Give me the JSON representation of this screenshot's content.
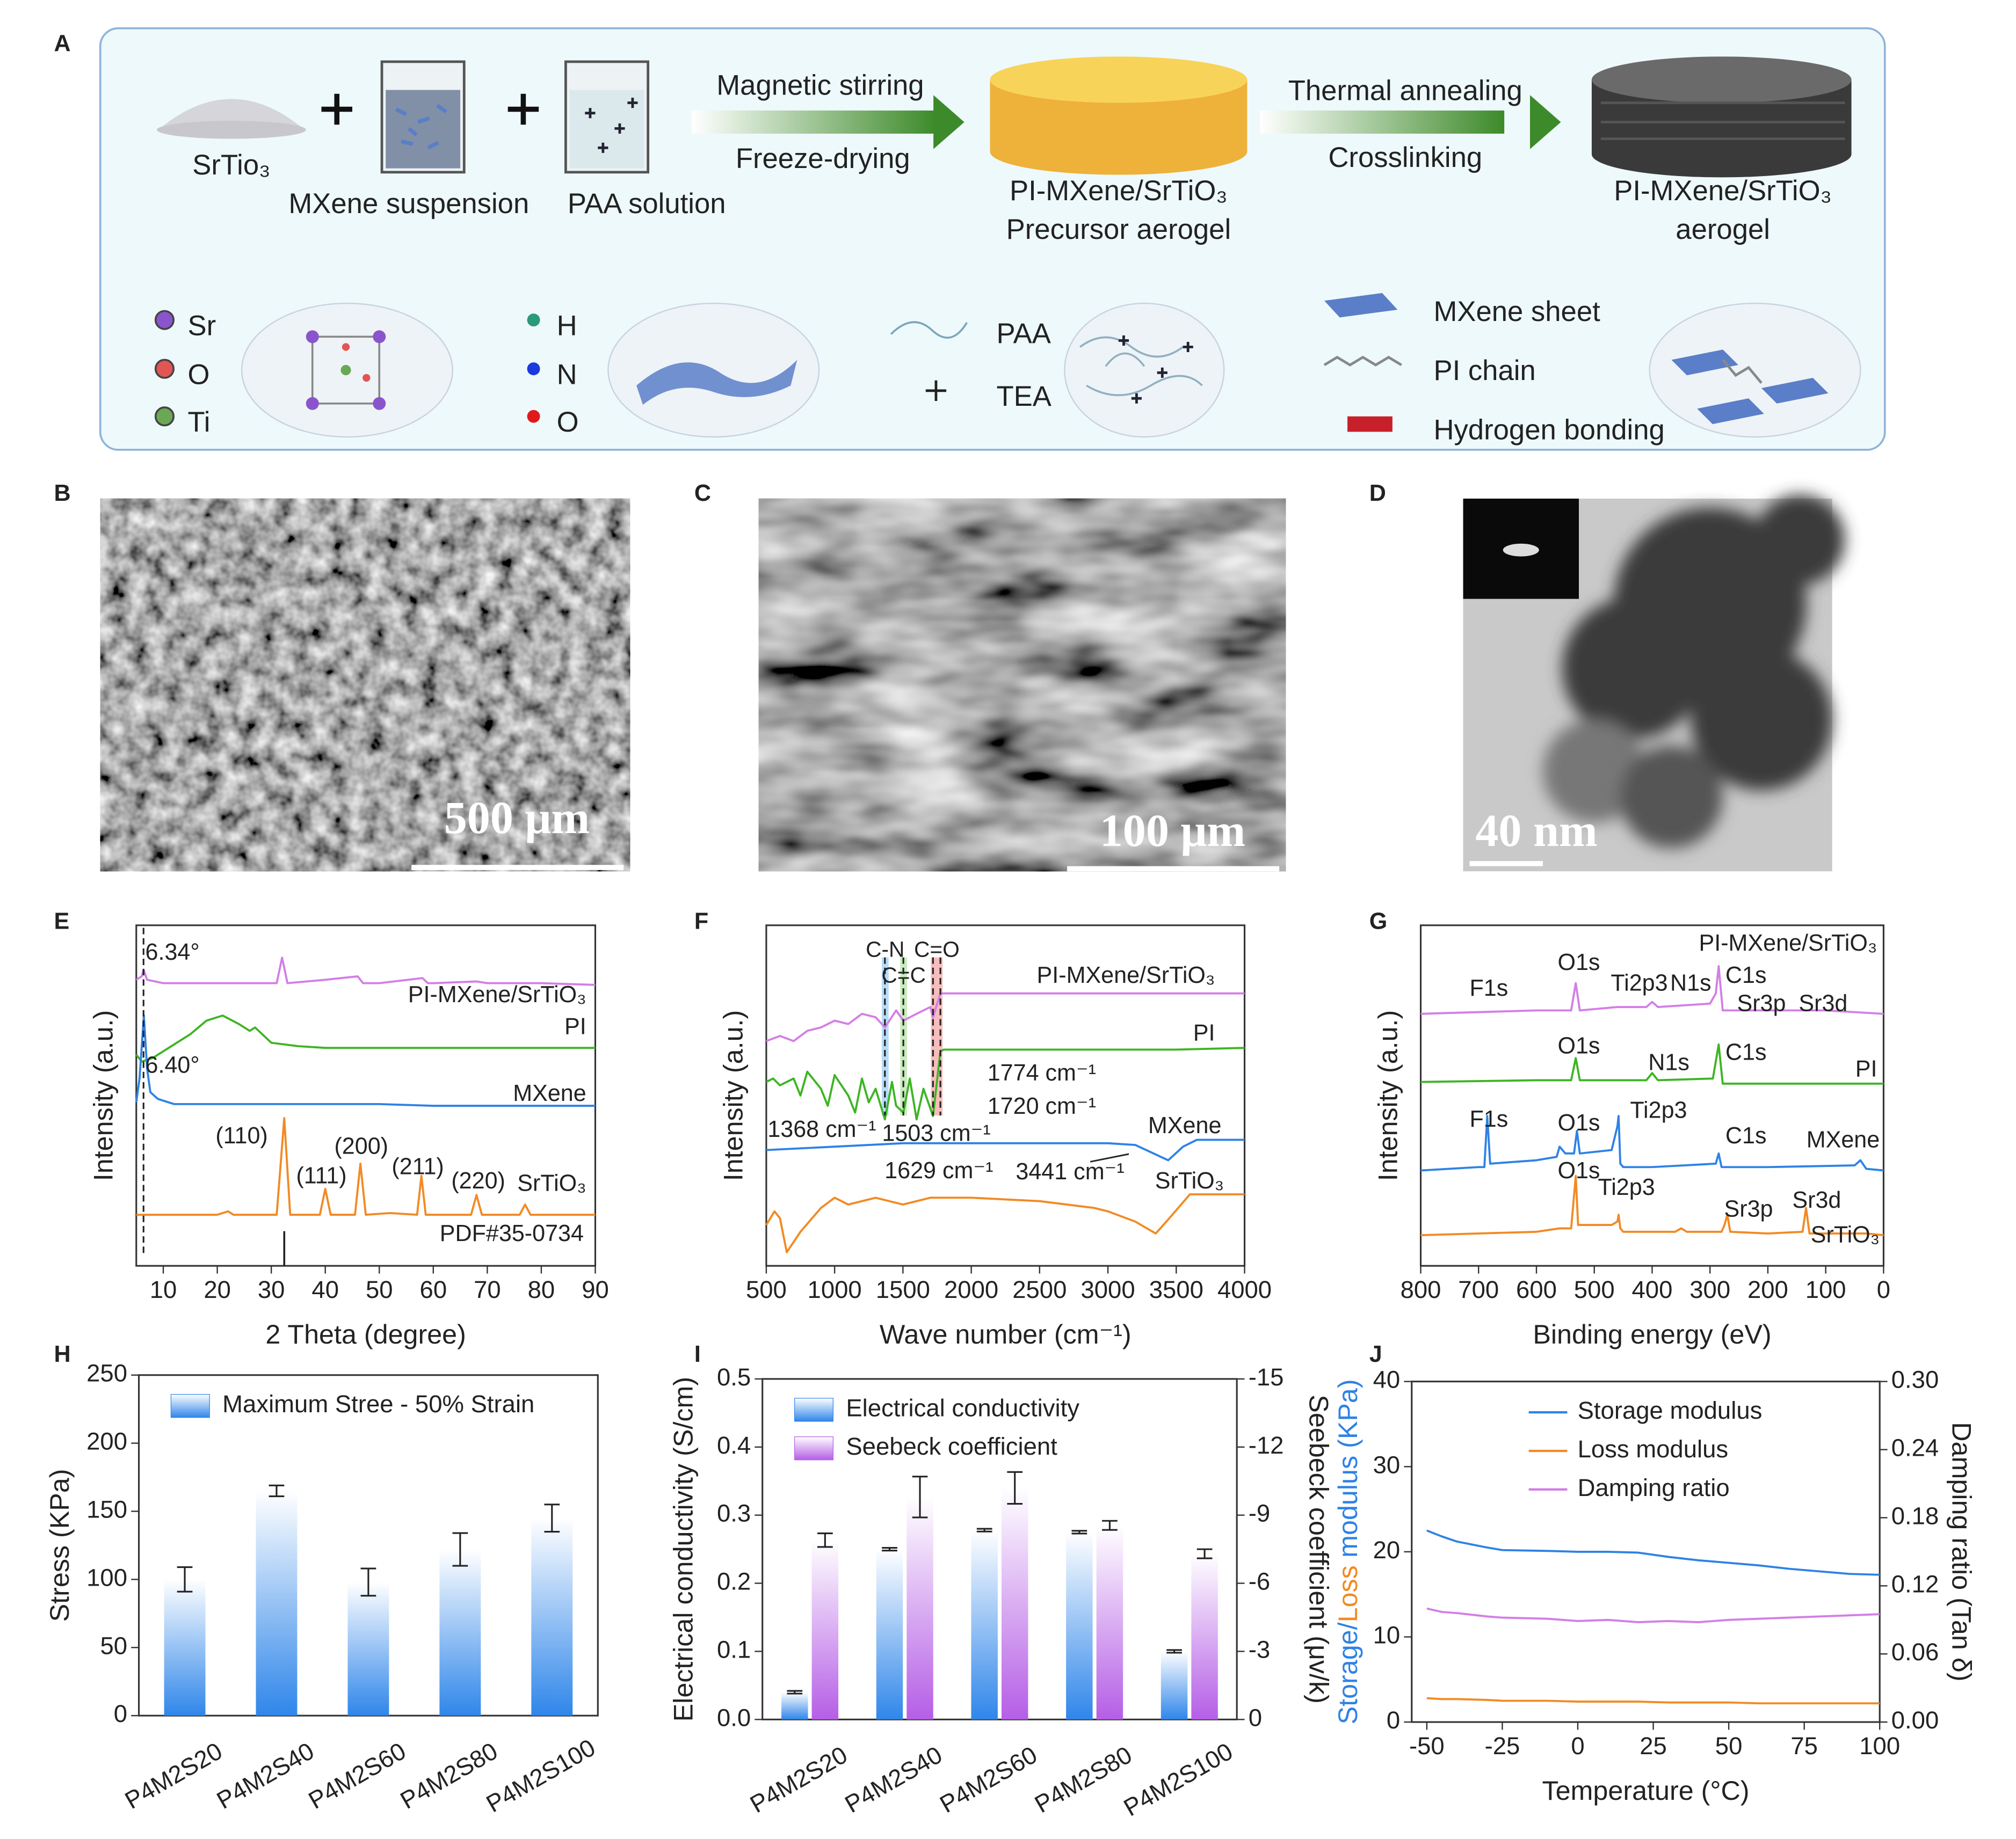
{
  "figure_a": {
    "label": "A",
    "srtio3": "SrTio₃",
    "mxene_suspension": "MXene suspension",
    "paa_solution": "PAA solution",
    "step1_top": "Magnetic stirring",
    "step1_bottom": "Freeze-drying",
    "precursor_line1": "PI-MXene/SrTiO₃",
    "precursor_line2": "Precursor aerogel",
    "step2_top": "Thermal annealing",
    "step2_bottom": "Crosslinking",
    "aerogel_line1": "PI-MXene/SrTiO₃",
    "aerogel_line2": "aerogel",
    "legend": [
      {
        "label": "Sr",
        "color": "#8a55cc"
      },
      {
        "label": "O",
        "color": "#e25555"
      },
      {
        "label": "Ti",
        "color": "#6aa854"
      },
      {
        "label": "H",
        "color": "#2a9a7a"
      },
      {
        "label": "N",
        "color": "#1a3adf"
      },
      {
        "label": "O",
        "color": "#e01a1a"
      },
      {
        "label": "PAA",
        "color": "#7aa6b8"
      },
      {
        "label": "TEA",
        "color": "#222222"
      },
      {
        "label": "MXene sheet",
        "color": "#5a7ec8"
      },
      {
        "label": "PI chain",
        "color": "#888888"
      },
      {
        "label": "Hydrogen bonding",
        "color": "#c8202a"
      }
    ]
  },
  "images": [
    {
      "label": "B",
      "scale_bar": "500 μm"
    },
    {
      "label": "C",
      "scale_bar": "100 μm"
    },
    {
      "label": "D",
      "scale_bar": "40 nm"
    }
  ],
  "chart_data": [
    {
      "type": "line",
      "label": "E",
      "xlabel": "2 Theta (degree)",
      "ylabel": "Intensity (a.u.)",
      "xlim": [
        5,
        90
      ],
      "xticks": [
        10,
        20,
        30,
        40,
        50,
        60,
        70,
        80,
        90
      ],
      "ylim": [
        0,
        100
      ],
      "series": [
        {
          "name": "PI-MXene/SrTiO₃",
          "color": "#d37ee6",
          "x": [
            5,
            6,
            6.34,
            7,
            10,
            15,
            20,
            25,
            31,
            32,
            33,
            40,
            46,
            47,
            50,
            58,
            59,
            60,
            68,
            70,
            80,
            90
          ],
          "values": [
            84,
            85,
            87,
            84,
            83,
            83,
            83,
            83,
            83,
            90.5,
            83,
            84,
            85,
            83,
            83,
            84.5,
            83,
            83,
            83.5,
            83,
            83,
            82.5
          ]
        },
        {
          "name": "PI",
          "color": "#3db523",
          "x": [
            5,
            6,
            8,
            10,
            15,
            18,
            21,
            24,
            26,
            27,
            30,
            35,
            40,
            50,
            60,
            70,
            80,
            90
          ],
          "values": [
            62,
            60,
            61,
            63,
            68,
            72,
            73.5,
            71,
            69,
            70,
            65.5,
            64.5,
            64,
            64,
            64,
            64,
            64,
            64
          ]
        },
        {
          "name": "MXene",
          "color": "#2e82e6",
          "x": [
            5,
            5.6,
            6.4,
            7,
            7.6,
            9,
            12,
            20,
            30,
            40,
            50,
            60,
            70,
            80,
            90
          ],
          "values": [
            48,
            55,
            73.5,
            58,
            51,
            49,
            47.5,
            47.5,
            47.5,
            47.5,
            47.5,
            47,
            47,
            47,
            47
          ]
        },
        {
          "name": "SrTiO₃",
          "color": "#f28a24",
          "x": [
            5,
            20,
            22,
            23,
            31,
            32.4,
            33.5,
            39,
            40,
            41,
            45.5,
            46.5,
            47.5,
            52,
            57,
            57.8,
            58.6,
            67,
            68,
            69,
            76,
            77,
            78,
            90
          ],
          "values": [
            15,
            15,
            16,
            15,
            15,
            43.4,
            15,
            15,
            22.6,
            15,
            15,
            30,
            15,
            15.5,
            15,
            26.4,
            15,
            15,
            20.8,
            15,
            15,
            18,
            15,
            15
          ]
        }
      ],
      "annotations": [
        {
          "label": "6.34°",
          "value": 6.34,
          "line": "dashed"
        },
        {
          "label": "6.40°"
        },
        {
          "label": "(110)"
        },
        {
          "label": "(111)"
        },
        {
          "label": "(200)"
        },
        {
          "label": "(211)"
        },
        {
          "label": "(220)"
        }
      ],
      "reference": {
        "label": "PDF#35-0734",
        "x": 32.4
      }
    },
    {
      "type": "line",
      "label": "F",
      "xlabel": "Wave number  (cm⁻¹)",
      "ylabel": "Intensity (a.u.)",
      "xlim": [
        500,
        4000
      ],
      "xticks": [
        500,
        1000,
        1500,
        2000,
        2500,
        3000,
        3500,
        4000
      ],
      "ylim": [
        0,
        100
      ],
      "series": [
        {
          "name": "PI-MXene/SrTiO₃",
          "color": "#d37ee6",
          "x": [
            500,
            600,
            700,
            800,
            900,
            1000,
            1100,
            1200,
            1300,
            1368,
            1450,
            1503,
            1600,
            1700,
            1720,
            1774,
            1800,
            2500,
            3000,
            3500,
            4000
          ],
          "values": [
            66,
            67.5,
            66,
            69,
            70,
            72,
            71,
            74,
            73,
            70,
            75,
            72,
            74,
            76,
            73,
            80,
            80,
            80,
            80,
            80,
            80
          ]
        },
        {
          "name": "PI",
          "color": "#3db523",
          "x": [
            500,
            550,
            600,
            700,
            750,
            800,
            900,
            950,
            1000,
            1100,
            1150,
            1200,
            1250,
            1300,
            1368,
            1420,
            1450,
            1503,
            1550,
            1600,
            1650,
            1720,
            1774,
            1800,
            2500,
            3000,
            3500,
            4000
          ],
          "values": [
            54,
            55,
            53,
            55,
            50,
            57,
            52,
            47,
            56,
            50,
            45,
            55,
            48,
            52,
            43,
            54,
            47,
            45,
            55,
            43,
            52,
            44,
            63,
            63.5,
            63.5,
            63.5,
            63.5,
            64
          ]
        },
        {
          "name": "MXene",
          "color": "#2e82e6",
          "x": [
            500,
            1000,
            1500,
            2000,
            2500,
            3000,
            3200,
            3441,
            3550,
            3650,
            4000
          ],
          "values": [
            34,
            35,
            36,
            36,
            36,
            36,
            35.5,
            31,
            35,
            37,
            37
          ]
        },
        {
          "name": "SrTiO₃",
          "color": "#f28a24",
          "x": [
            500,
            560,
            600,
            650,
            750,
            900,
            1000,
            1100,
            1300,
            1500,
            1700,
            2000,
            2500,
            2900,
            3000,
            3200,
            3350,
            3450,
            3600,
            4000
          ],
          "values": [
            12,
            16,
            14,
            4,
            10,
            17,
            20,
            18,
            20,
            18,
            20,
            20,
            19,
            17,
            16,
            13,
            9.5,
            14,
            21,
            21
          ]
        }
      ],
      "bands": [
        {
          "label": "C-N",
          "from": 1345,
          "to": 1395,
          "color": "#9fd0f5"
        },
        {
          "label": "C=C",
          "from": 1480,
          "to": 1530,
          "color": "#b8e6a8"
        },
        {
          "label": "C=O",
          "from": 1705,
          "to": 1790,
          "color": "#f4a6a6"
        }
      ],
      "annotations": [
        {
          "label": "1774 cm⁻¹",
          "value": 1774,
          "line": "dashed"
        },
        {
          "label": "1720 cm⁻¹",
          "value": 1720,
          "line": "dashed"
        },
        {
          "label": "1368 cm⁻¹",
          "value": 1368,
          "line": "dashed"
        },
        {
          "label": "1503 cm⁻¹",
          "value": 1503,
          "line": "dashed"
        },
        {
          "label": "1629 cm⁻¹"
        },
        {
          "label": "3441 cm⁻¹"
        }
      ]
    },
    {
      "type": "line",
      "label": "G",
      "xlabel": "Binding energy (eV)",
      "ylabel": "Intensity (a.u.)",
      "xlim": [
        800,
        0
      ],
      "xticks": [
        800,
        700,
        600,
        500,
        400,
        300,
        200,
        100,
        0
      ],
      "ylim": [
        0,
        100
      ],
      "series": [
        {
          "name": "PI-MXene/SrTiO₃",
          "color": "#d37ee6",
          "x": [
            800,
            700,
            600,
            540,
            532,
            525,
            460,
            410,
            400,
            390,
            300,
            290,
            285,
            278,
            270,
            200,
            100,
            0
          ],
          "values": [
            74,
            74.5,
            75,
            75,
            83,
            75,
            76,
            76,
            77.5,
            76,
            77,
            80,
            88,
            75,
            75,
            75,
            75,
            74
          ]
        },
        {
          "name": "PI",
          "color": "#3db523",
          "x": [
            800,
            600,
            540,
            532,
            525,
            410,
            400,
            390,
            295,
            285,
            278,
            200,
            0
          ],
          "values": [
            54,
            54.5,
            54.5,
            61,
            54.5,
            54.5,
            56.6,
            54.5,
            55,
            65,
            53.5,
            53.5,
            53.5
          ]
        },
        {
          "name": "MXene",
          "color": "#2e82e6",
          "x": [
            800,
            700,
            690,
            685,
            680,
            600,
            565,
            560,
            550,
            535,
            530,
            525,
            470,
            460,
            458,
            455,
            450,
            400,
            290,
            285,
            280,
            200,
            50,
            40,
            30,
            0
          ],
          "values": [
            28,
            29,
            29,
            44,
            30,
            31,
            32,
            35,
            33,
            33,
            39.6,
            33,
            34,
            41,
            44,
            30,
            29,
            29,
            30,
            33,
            29,
            29,
            29.5,
            31,
            28.5,
            28
          ]
        },
        {
          "name": "SrTiO₃",
          "color": "#f28a24",
          "x": [
            800,
            600,
            560,
            540,
            532,
            528,
            470,
            460,
            458,
            455,
            450,
            360,
            350,
            340,
            280,
            275,
            270,
            265,
            200,
            140,
            134,
            128,
            100,
            30,
            0
          ],
          "values": [
            9,
            10,
            11,
            11,
            26.4,
            12,
            12,
            13,
            15,
            11,
            10,
            10,
            11,
            10,
            10,
            12,
            15,
            10,
            9.5,
            10,
            17,
            9.5,
            9.5,
            9.5,
            9
          ]
        }
      ],
      "annotations": [
        {
          "label": "F1s"
        },
        {
          "label": "O1s"
        },
        {
          "label": "Ti2p3"
        },
        {
          "label": "N1s"
        },
        {
          "label": "C1s"
        },
        {
          "label": "Sr3p"
        },
        {
          "label": "Sr3d"
        },
        {
          "label": "O1s"
        },
        {
          "label": "N1s"
        },
        {
          "label": "C1s"
        },
        {
          "label": "F1s"
        },
        {
          "label": "O1s"
        },
        {
          "label": "Ti2p3"
        },
        {
          "label": "C1s"
        },
        {
          "label": "O1s"
        },
        {
          "label": "Ti2p3"
        },
        {
          "label": "Sr3p"
        },
        {
          "label": "Sr3d"
        }
      ]
    },
    {
      "type": "bar",
      "label": "H",
      "ylabel": "Stress (KPa)",
      "legend": "upper left",
      "categories": [
        "P4M2S20",
        "P4M2S40",
        "P4M2S60",
        "P4M2S80",
        "P4M2S100"
      ],
      "ylim": [
        0,
        250
      ],
      "yticks": [
        0,
        50,
        100,
        150,
        200,
        250
      ],
      "series": [
        {
          "name": "Maximum Stree - 50% Strain",
          "color": "#2f86ea",
          "values": [
            100,
            165,
            98,
            122,
            145
          ],
          "errors": [
            9,
            4,
            10,
            12,
            10
          ]
        }
      ]
    },
    {
      "type": "bar",
      "label": "I",
      "ylabel": "Electrical conductivity (S/cm)",
      "y2label": "Seebeck coefficient (μv/k)",
      "legend": "upper left",
      "categories": [
        "P4M2S20",
        "P4M2S40",
        "P4M2S60",
        "P4M2S80",
        "P4M2S100"
      ],
      "ylim": [
        0,
        0.5
      ],
      "yticks": [
        {
          "value": 0,
          "label": "0.0"
        },
        0.1,
        0.2,
        0.3,
        0.4,
        0.5
      ],
      "y2lim": [
        0,
        -15
      ],
      "y2ticks": [
        0,
        -3,
        -6,
        -9,
        -12,
        -15
      ],
      "series": [
        {
          "name": "Electrical conductivity",
          "color": "#2f86ea",
          "values": [
            0.04,
            0.25,
            0.278,
            0.275,
            0.1
          ],
          "errors": [
            0.002,
            0.002,
            0.002,
            0.002,
            0.002
          ]
        },
        {
          "name": "Seebeck coefficient",
          "color": "#b55ee6",
          "axis": "y2",
          "values": [
            -7.9,
            -9.8,
            -10.2,
            -8.55,
            -7.3
          ],
          "errors": [
            0.3,
            0.9,
            0.7,
            0.2,
            0.2
          ]
        }
      ]
    },
    {
      "type": "line",
      "label": "J",
      "xlabel": "Temperature (°C)",
      "ylabel": [
        "Storage/",
        "Loss",
        "modulus (KPa)"
      ],
      "y2label": "Damping ratio (Tan δ)",
      "legend": "upper left",
      "xlim": [
        -55,
        100
      ],
      "xticks": [
        -50,
        -25,
        0,
        25,
        50,
        75,
        100
      ],
      "ylim": [
        0,
        40
      ],
      "yticks": [
        0,
        10,
        20,
        30,
        40
      ],
      "y2lim": [
        0,
        0.3
      ],
      "y2ticks": [
        {
          "value": 0,
          "label": "0.00"
        },
        0.06,
        0.12,
        0.18,
        0.24,
        {
          "value": 0.3,
          "label": "0.30"
        }
      ],
      "x": [
        -50,
        -45,
        -40,
        -30,
        -25,
        -10,
        0,
        10,
        20,
        30,
        40,
        50,
        60,
        70,
        80,
        90,
        100
      ],
      "series": [
        {
          "name": "Storage modulus",
          "color": "#2e82e6",
          "values": [
            22.5,
            21.8,
            21.2,
            20.5,
            20.2,
            20.1,
            20,
            20,
            19.9,
            19.4,
            19,
            18.7,
            18.4,
            18,
            17.7,
            17.4,
            17.3
          ]
        },
        {
          "name": "Loss modulus",
          "color": "#f28a24",
          "values": [
            2.8,
            2.7,
            2.7,
            2.6,
            2.5,
            2.5,
            2.4,
            2.4,
            2.4,
            2.3,
            2.3,
            2.3,
            2.2,
            2.2,
            2.2,
            2.2,
            2.2
          ]
        },
        {
          "name": "Damping ratio",
          "color": "#d37ee6",
          "axis": "y2",
          "values": [
            0.1,
            0.097,
            0.096,
            0.093,
            0.092,
            0.091,
            0.089,
            0.09,
            0.088,
            0.089,
            0.088,
            0.09,
            0.091,
            0.092,
            0.093,
            0.094,
            0.095
          ]
        }
      ]
    }
  ]
}
